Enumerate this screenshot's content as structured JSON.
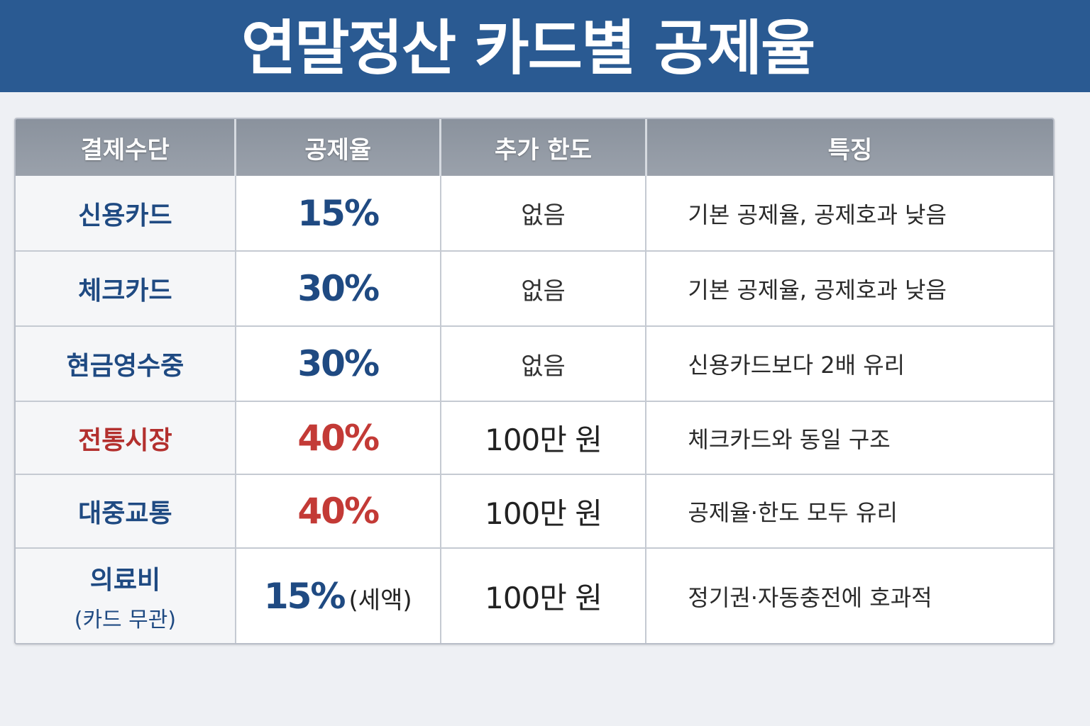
{
  "title": "연말정산 카드별 공제율",
  "table": {
    "headers": [
      "결제수단",
      "공제율",
      "추가 한도",
      "특징"
    ],
    "rows": [
      {
        "method": "신용카드",
        "method_sub": "",
        "rate": "15%",
        "rate_note": "",
        "limit": "없음",
        "feature": "기본 공제율, 공제호과 낮음",
        "highlight": false
      },
      {
        "method": "체크카드",
        "method_sub": "",
        "rate": "30%",
        "rate_note": "",
        "limit": "없음",
        "feature": "기본 공제율, 공제호과 낮음",
        "highlight": false
      },
      {
        "method": "현금영수중",
        "method_sub": "",
        "rate": "30%",
        "rate_note": "",
        "limit": "없음",
        "feature": "신용카드보다 2배 유리",
        "highlight": false
      },
      {
        "method": "전통시장",
        "method_sub": "",
        "rate": "40%",
        "rate_note": "",
        "limit": "100만 원",
        "feature": "체크카드와 동일 구조",
        "highlight": true
      },
      {
        "method": "대중교통",
        "method_sub": "",
        "rate": "40%",
        "rate_note": "",
        "limit": "100만 원",
        "feature": "공제율·한도 모두 유리",
        "highlight": false
      },
      {
        "method": "의료비",
        "method_sub": "(카드 무관)",
        "rate": "15%",
        "rate_note": "(세액)",
        "limit": "100만 원",
        "feature": "정기권·자동충전에 호과적",
        "highlight": false
      }
    ]
  },
  "colors": {
    "banner": "#2a5a92",
    "accent_blue": "#1f4a82",
    "accent_red": "#c33a36",
    "header": "#8f97a1"
  }
}
